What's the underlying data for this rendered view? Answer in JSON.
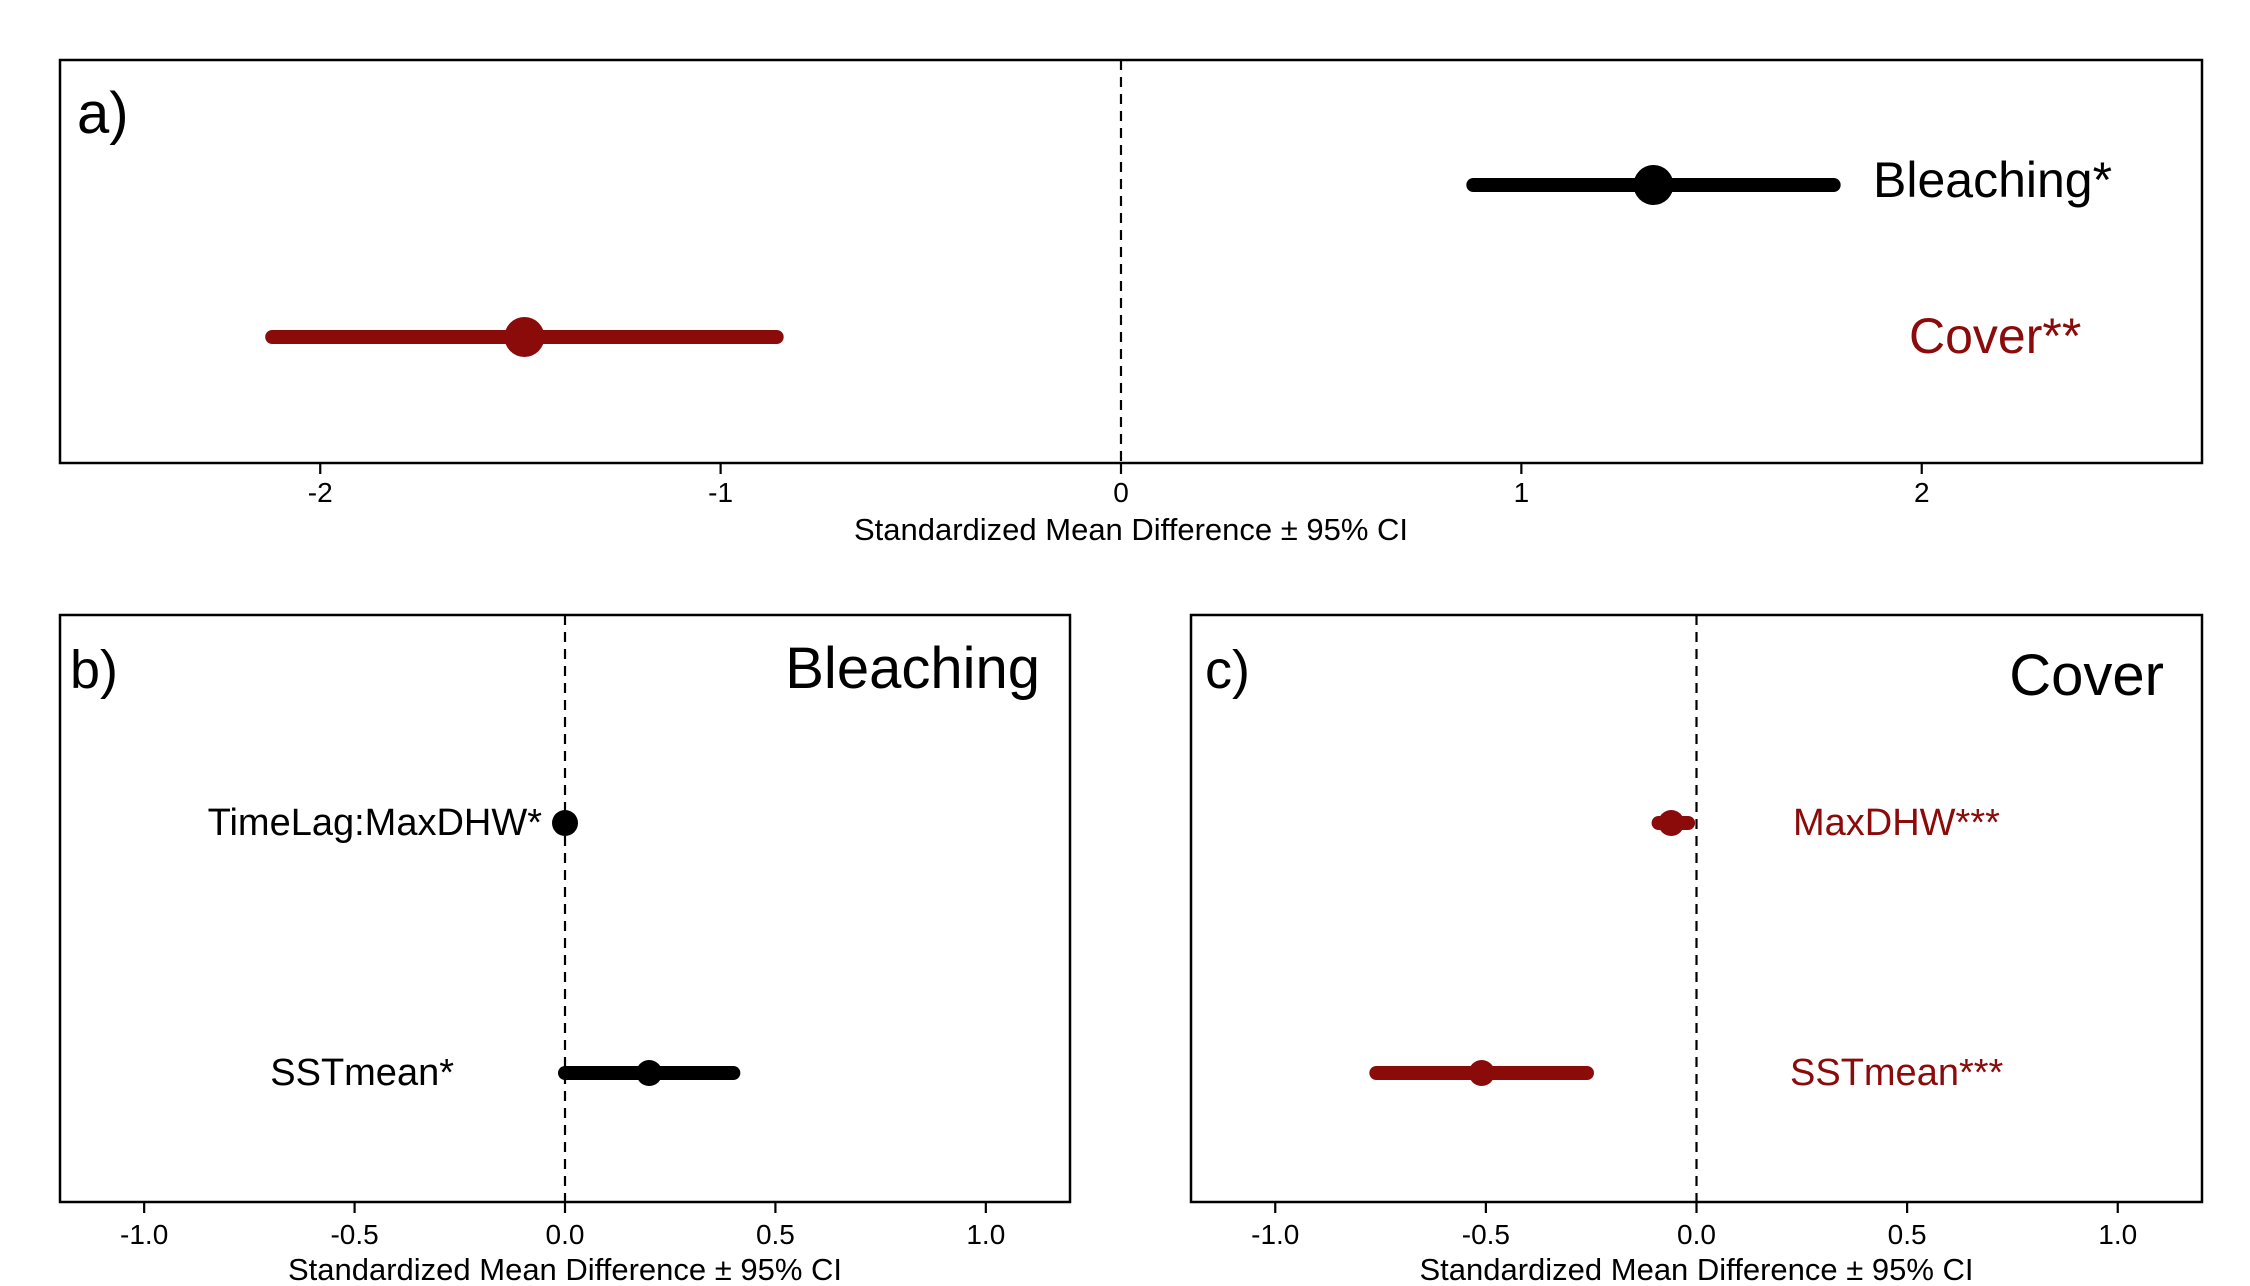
{
  "colors": {
    "bleaching": "#000000",
    "cover": "#8b0a0a"
  },
  "chart_data": [
    {
      "type": "forest",
      "panel_label": "a)",
      "title": "",
      "xlabel": "Standardized Mean Difference ± 95% CI",
      "xlim": [
        -2.65,
        2.7
      ],
      "xticks": [
        -2,
        -1,
        0,
        1,
        2
      ],
      "xtick_labels": [
        "-2",
        "-1",
        "0",
        "1",
        "2"
      ],
      "reference_line": 0,
      "series": [
        {
          "name": "Bleaching*",
          "estimate": 1.33,
          "ci_low": 0.88,
          "ci_high": 1.78,
          "color": "#000000"
        },
        {
          "name": "Cover**",
          "estimate": -1.49,
          "ci_low": -2.12,
          "ci_high": -0.86,
          "color": "#8b0a0a"
        }
      ]
    },
    {
      "type": "forest",
      "panel_label": "b)",
      "title": "Bleaching",
      "xlabel": "Standardized Mean Difference ± 95% CI",
      "xlim": [
        -1.2,
        1.2
      ],
      "xticks": [
        -1.0,
        -0.5,
        0.0,
        0.5,
        1.0
      ],
      "xtick_labels": [
        "-1.0",
        "-0.5",
        "0.0",
        "0.5",
        "1.0"
      ],
      "reference_line": 0,
      "series": [
        {
          "name": "TimeLag:MaxDHW*",
          "estimate": 0.0,
          "ci_low": -0.01,
          "ci_high": 0.01,
          "color": "#000000"
        },
        {
          "name": "SSTmean*",
          "estimate": 0.2,
          "ci_low": 0.0,
          "ci_high": 0.4,
          "color": "#000000"
        }
      ]
    },
    {
      "type": "forest",
      "panel_label": "c)",
      "title": "Cover",
      "xlabel": "Standardized Mean Difference ± 95% CI",
      "xlim": [
        -1.2,
        1.2
      ],
      "xticks": [
        -1.0,
        -0.5,
        0.0,
        0.5,
        1.0
      ],
      "xtick_labels": [
        "-1.0",
        "-0.5",
        "0.0",
        "0.5",
        "1.0"
      ],
      "reference_line": 0,
      "series": [
        {
          "name": "MaxDHW***",
          "estimate": -0.06,
          "ci_low": -0.09,
          "ci_high": -0.02,
          "color": "#8b0a0a"
        },
        {
          "name": "SSTmean***",
          "estimate": -0.51,
          "ci_low": -0.76,
          "ci_high": -0.26,
          "color": "#8b0a0a"
        }
      ]
    }
  ]
}
